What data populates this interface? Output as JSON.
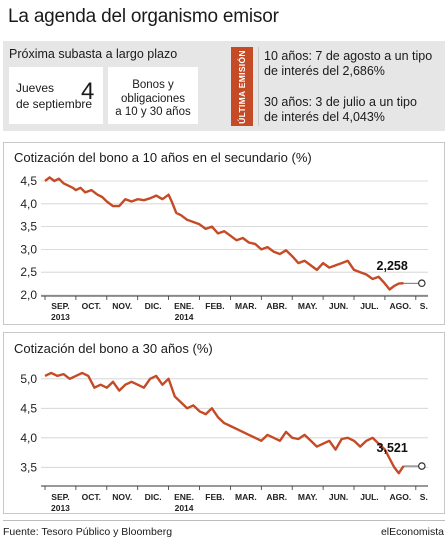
{
  "title": "La agenda del organismo emisor",
  "auction": {
    "label": "Próxima subasta a largo plazo",
    "day_line1": "Jueves",
    "day_line2": "de septiembre",
    "day_number": "4",
    "type_line1": "Bonos y",
    "type_line2": "obligaciones",
    "type_line3": "a 10 y 30 años",
    "badge": "ÚLTIMA EMISIÓN",
    "last10_line1": "10 años: 7 de agosto a un tipo",
    "last10_line2": "de interés del 2,686%",
    "last30_line1": "30 años: 3 de julio a un tipo",
    "last30_line2": "de interés del 4,043%"
  },
  "colors": {
    "line": "#c54b26",
    "badge": "#c54b26",
    "panel": "#e6e6e6",
    "grid": "#d0d0d0"
  },
  "chart_data": [
    {
      "type": "line",
      "title": "Cotización del bono a 10 años en el secundario (%)",
      "months": [
        "SEP.",
        "OCT.",
        "NOV.",
        "DIC.",
        "ENE.",
        "FEB.",
        "MAR.",
        "ABR.",
        "MAY.",
        "JUN.",
        "JUL.",
        "AGO.",
        "S."
      ],
      "year_labels": [
        {
          "month_index": 0,
          "text": "2013"
        },
        {
          "month_index": 4,
          "text": "2014"
        }
      ],
      "ylim": [
        2.0,
        4.5
      ],
      "yticks": [
        "4,5",
        "4,0",
        "3,5",
        "3,0",
        "2,5",
        "2,0"
      ],
      "ytick_values": [
        4.5,
        4.0,
        3.5,
        3.0,
        2.5,
        2.0
      ],
      "last_value_label": "2,258",
      "x": [
        0.0,
        0.15,
        0.3,
        0.45,
        0.6,
        0.75,
        0.9,
        1.0,
        1.15,
        1.3,
        1.5,
        1.7,
        1.85,
        2.0,
        2.2,
        2.4,
        2.6,
        2.8,
        3.0,
        3.2,
        3.4,
        3.6,
        3.8,
        4.0,
        4.1,
        4.25,
        4.4,
        4.6,
        4.8,
        5.0,
        5.2,
        5.4,
        5.6,
        5.8,
        6.0,
        6.2,
        6.4,
        6.6,
        6.8,
        7.0,
        7.2,
        7.4,
        7.6,
        7.8,
        8.0,
        8.2,
        8.4,
        8.6,
        8.8,
        9.0,
        9.2,
        9.4,
        9.6,
        9.8,
        10.0,
        10.2,
        10.4,
        10.6,
        10.8,
        11.0,
        11.15,
        11.3,
        11.45,
        11.6
      ],
      "values": [
        4.5,
        4.58,
        4.5,
        4.55,
        4.45,
        4.4,
        4.35,
        4.3,
        4.35,
        4.25,
        4.3,
        4.2,
        4.15,
        4.05,
        3.95,
        3.95,
        4.1,
        4.05,
        4.1,
        4.08,
        4.12,
        4.18,
        4.1,
        4.2,
        4.05,
        3.8,
        3.75,
        3.65,
        3.6,
        3.55,
        3.45,
        3.5,
        3.35,
        3.4,
        3.3,
        3.2,
        3.25,
        3.15,
        3.12,
        3.0,
        3.05,
        2.95,
        2.9,
        2.98,
        2.85,
        2.7,
        2.75,
        2.65,
        2.55,
        2.7,
        2.6,
        2.65,
        2.7,
        2.75,
        2.55,
        2.5,
        2.45,
        2.35,
        2.4,
        2.25,
        2.12,
        2.2,
        2.25,
        2.258
      ]
    },
    {
      "type": "line",
      "title": "Cotización del bono a 30 años (%)",
      "months": [
        "SEP.",
        "OCT.",
        "NOV.",
        "DIC.",
        "ENE.",
        "FEB.",
        "MAR.",
        "ABR.",
        "MAY.",
        "JUN.",
        "JUL.",
        "AGO.",
        "S."
      ],
      "year_labels": [
        {
          "month_index": 0,
          "text": "2013"
        },
        {
          "month_index": 4,
          "text": "2014"
        }
      ],
      "ylim": [
        3.2,
        5.2
      ],
      "yticks": [
        "5,0",
        "4,5",
        "4,0",
        "3,5"
      ],
      "ytick_values": [
        5.0,
        4.5,
        4.0,
        3.5
      ],
      "last_value_label": "3,521",
      "x": [
        0.0,
        0.2,
        0.4,
        0.6,
        0.8,
        1.0,
        1.2,
        1.4,
        1.6,
        1.8,
        2.0,
        2.2,
        2.4,
        2.6,
        2.8,
        3.0,
        3.2,
        3.4,
        3.6,
        3.8,
        4.0,
        4.2,
        4.4,
        4.6,
        4.8,
        5.0,
        5.2,
        5.4,
        5.6,
        5.8,
        6.0,
        6.2,
        6.4,
        6.6,
        6.8,
        7.0,
        7.2,
        7.4,
        7.6,
        7.8,
        8.0,
        8.2,
        8.4,
        8.6,
        8.8,
        9.0,
        9.2,
        9.4,
        9.6,
        9.8,
        10.0,
        10.2,
        10.4,
        10.6,
        10.8,
        11.0,
        11.15,
        11.3,
        11.45,
        11.6
      ],
      "values": [
        5.05,
        5.1,
        5.05,
        5.08,
        5.0,
        5.05,
        5.1,
        5.05,
        4.85,
        4.9,
        4.85,
        4.95,
        4.8,
        4.9,
        4.95,
        4.9,
        4.85,
        5.0,
        5.05,
        4.9,
        5.0,
        4.7,
        4.6,
        4.5,
        4.55,
        4.45,
        4.4,
        4.5,
        4.35,
        4.25,
        4.2,
        4.15,
        4.1,
        4.05,
        4.0,
        3.95,
        4.05,
        4.0,
        3.95,
        4.1,
        4.0,
        3.98,
        4.05,
        3.95,
        3.85,
        3.9,
        3.95,
        3.8,
        3.98,
        4.0,
        3.95,
        3.85,
        3.95,
        4.0,
        3.9,
        3.8,
        3.65,
        3.5,
        3.4,
        3.521
      ]
    }
  ],
  "footer": {
    "source": "Fuente: Tesoro Público y Bloomberg",
    "brand": "elEconomista"
  }
}
